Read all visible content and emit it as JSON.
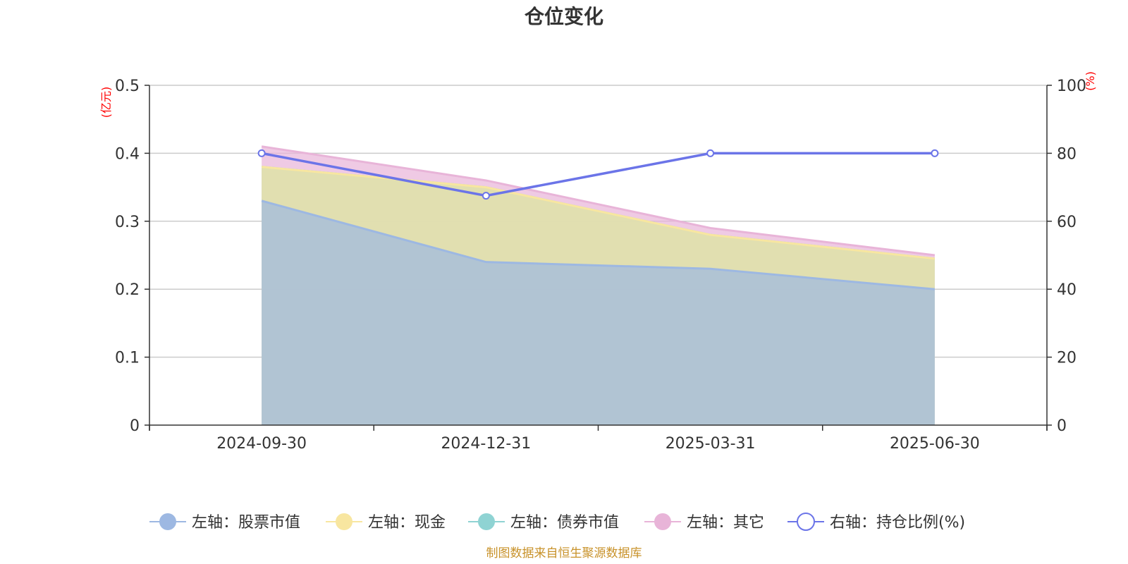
{
  "chart_data": {
    "type": "area",
    "title": "仓位变化",
    "categories": [
      "2024-09-30",
      "2024-12-31",
      "2025-03-31",
      "2025-06-30"
    ],
    "left_axis": {
      "unit": "(亿元)",
      "ylim": [
        0,
        0.5
      ],
      "ticks": [
        "0",
        "0.1",
        "0.2",
        "0.3",
        "0.4",
        "0.5"
      ]
    },
    "right_axis": {
      "unit": "(%)",
      "ylim": [
        0,
        100
      ],
      "ticks": [
        "0",
        "20",
        "40",
        "60",
        "80",
        "100"
      ]
    },
    "grid": true,
    "legend_position": "bottom",
    "series": [
      {
        "name": "左轴：股票市值",
        "axis": "left",
        "stack": "assets",
        "color": "#9db8e2",
        "values": [
          0.33,
          0.24,
          0.23,
          0.2
        ]
      },
      {
        "name": "左轴：现金",
        "axis": "left",
        "stack": "assets",
        "color": "#f8e6a0",
        "values": [
          0.05,
          0.11,
          0.05,
          0.045
        ]
      },
      {
        "name": "左轴：债券市值",
        "axis": "left",
        "stack": "assets",
        "color": "#8fd3d3",
        "values": [
          0,
          0,
          0,
          0
        ]
      },
      {
        "name": "左轴：其它",
        "axis": "left",
        "stack": "assets",
        "color": "#e8b4d8",
        "values": [
          0.03,
          0.01,
          0.01,
          0.005
        ]
      },
      {
        "name": "右轴：持仓比例(%)",
        "axis": "right",
        "type": "line",
        "color": "#6b74e8",
        "values": [
          80,
          67.5,
          80,
          80
        ]
      }
    ]
  },
  "source_note": "制图数据来自恒生聚源数据库"
}
